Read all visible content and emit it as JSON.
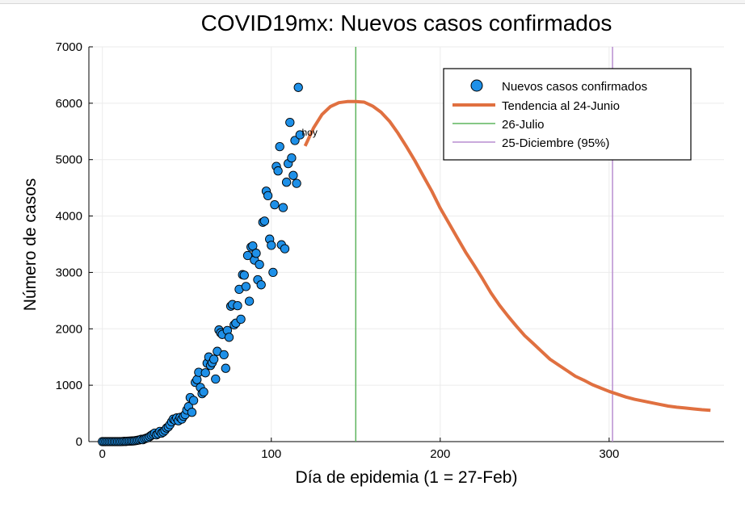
{
  "chart_data": {
    "type": "scatter",
    "title": "COVID19mx: Nuevos casos confirmados",
    "xlabel": "Día de epidemia (1 = 27-Feb)",
    "ylabel": "Número de casos",
    "xlim": [
      -8,
      368
    ],
    "ylim": [
      0,
      7000
    ],
    "xticks": [
      0,
      100,
      200,
      300
    ],
    "yticks": [
      0,
      1000,
      2000,
      3000,
      4000,
      5000,
      6000,
      7000
    ],
    "grid": true,
    "legend_position": "top-right",
    "annotation": {
      "text": "hoy",
      "x": 119,
      "y": 5480
    },
    "colors": {
      "points": "#1e90e8",
      "trend": "#e07040",
      "vline_julio": "#5fb55f",
      "vline_diciembre": "#b98ed0"
    },
    "series": [
      {
        "name": "Nuevos casos confirmados",
        "kind": "scatter",
        "points": [
          [
            0,
            0
          ],
          [
            1,
            0
          ],
          [
            2,
            0
          ],
          [
            3,
            0
          ],
          [
            4,
            0
          ],
          [
            5,
            0
          ],
          [
            6,
            0
          ],
          [
            7,
            0
          ],
          [
            8,
            0
          ],
          [
            9,
            0
          ],
          [
            10,
            0
          ],
          [
            11,
            0
          ],
          [
            12,
            2
          ],
          [
            13,
            5
          ],
          [
            14,
            3
          ],
          [
            15,
            7
          ],
          [
            16,
            8
          ],
          [
            17,
            10
          ],
          [
            18,
            12
          ],
          [
            19,
            15
          ],
          [
            20,
            20
          ],
          [
            21,
            25
          ],
          [
            22,
            30
          ],
          [
            23,
            40
          ],
          [
            24,
            35
          ],
          [
            25,
            50
          ],
          [
            26,
            60
          ],
          [
            27,
            70
          ],
          [
            28,
            90
          ],
          [
            29,
            110
          ],
          [
            30,
            130
          ],
          [
            31,
            150
          ],
          [
            32,
            120
          ],
          [
            33,
            140
          ],
          [
            34,
            180
          ],
          [
            35,
            150
          ],
          [
            36,
            170
          ],
          [
            37,
            200
          ],
          [
            38,
            240
          ],
          [
            39,
            260
          ],
          [
            40,
            300
          ],
          [
            41,
            350
          ],
          [
            42,
            400
          ],
          [
            43,
            380
          ],
          [
            44,
            420
          ],
          [
            45,
            370
          ],
          [
            46,
            430
          ],
          [
            47,
            400
          ],
          [
            48,
            450
          ],
          [
            49,
            480
          ],
          [
            50,
            560
          ],
          [
            51,
            620
          ],
          [
            52,
            780
          ],
          [
            53,
            520
          ],
          [
            54,
            730
          ],
          [
            55,
            1050
          ],
          [
            56,
            1100
          ],
          [
            57,
            1230
          ],
          [
            58,
            960
          ],
          [
            59,
            850
          ],
          [
            60,
            880
          ],
          [
            61,
            1220
          ],
          [
            62,
            1390
          ],
          [
            63,
            1500
          ],
          [
            64,
            1350
          ],
          [
            65,
            1400
          ],
          [
            66,
            1460
          ],
          [
            67,
            1110
          ],
          [
            68,
            1600
          ],
          [
            69,
            1980
          ],
          [
            70,
            1930
          ],
          [
            71,
            1900
          ],
          [
            72,
            1540
          ],
          [
            73,
            1300
          ],
          [
            74,
            1970
          ],
          [
            75,
            1850
          ],
          [
            76,
            2400
          ],
          [
            77,
            2430
          ],
          [
            78,
            2070
          ],
          [
            79,
            2100
          ],
          [
            80,
            2410
          ],
          [
            81,
            2700
          ],
          [
            82,
            2170
          ],
          [
            83,
            2960
          ],
          [
            84,
            2950
          ],
          [
            85,
            2750
          ],
          [
            86,
            3300
          ],
          [
            87,
            2490
          ],
          [
            88,
            3450
          ],
          [
            89,
            3470
          ],
          [
            90,
            3220
          ],
          [
            91,
            3340
          ],
          [
            92,
            2870
          ],
          [
            93,
            3140
          ],
          [
            94,
            2780
          ],
          [
            95,
            3890
          ],
          [
            96,
            3910
          ],
          [
            97,
            4440
          ],
          [
            98,
            4360
          ],
          [
            99,
            3590
          ],
          [
            100,
            3480
          ],
          [
            101,
            3000
          ],
          [
            102,
            4200
          ],
          [
            103,
            4880
          ],
          [
            104,
            4800
          ],
          [
            105,
            5230
          ],
          [
            106,
            3490
          ],
          [
            107,
            4150
          ],
          [
            108,
            3420
          ],
          [
            109,
            4600
          ],
          [
            110,
            4930
          ],
          [
            111,
            5660
          ],
          [
            112,
            5030
          ],
          [
            113,
            4720
          ],
          [
            114,
            5340
          ],
          [
            115,
            4580
          ],
          [
            116,
            6280
          ],
          [
            117,
            5440
          ]
        ]
      },
      {
        "name": "Tendencia al 24-Junio",
        "kind": "line",
        "peak_day": 152,
        "peak_value": 6030,
        "x_range": [
          120,
          360
        ],
        "points": [
          [
            120,
            5240
          ],
          [
            125,
            5560
          ],
          [
            130,
            5800
          ],
          [
            135,
            5940
          ],
          [
            140,
            6010
          ],
          [
            145,
            6030
          ],
          [
            150,
            6030
          ],
          [
            155,
            6020
          ],
          [
            160,
            5950
          ],
          [
            165,
            5840
          ],
          [
            170,
            5680
          ],
          [
            175,
            5470
          ],
          [
            180,
            5230
          ],
          [
            185,
            4980
          ],
          [
            190,
            4710
          ],
          [
            195,
            4440
          ],
          [
            200,
            4140
          ],
          [
            205,
            3880
          ],
          [
            210,
            3620
          ],
          [
            215,
            3360
          ],
          [
            220,
            3130
          ],
          [
            225,
            2890
          ],
          [
            230,
            2640
          ],
          [
            235,
            2420
          ],
          [
            240,
            2230
          ],
          [
            245,
            2050
          ],
          [
            250,
            1880
          ],
          [
            255,
            1740
          ],
          [
            260,
            1600
          ],
          [
            265,
            1460
          ],
          [
            270,
            1360
          ],
          [
            275,
            1260
          ],
          [
            280,
            1160
          ],
          [
            285,
            1090
          ],
          [
            290,
            1010
          ],
          [
            295,
            950
          ],
          [
            300,
            890
          ],
          [
            305,
            840
          ],
          [
            310,
            790
          ],
          [
            315,
            750
          ],
          [
            320,
            720
          ],
          [
            325,
            690
          ],
          [
            330,
            660
          ],
          [
            335,
            630
          ],
          [
            340,
            610
          ],
          [
            345,
            595
          ],
          [
            350,
            580
          ],
          [
            355,
            565
          ],
          [
            360,
            555
          ]
        ]
      },
      {
        "name": "26-Julio",
        "kind": "vline",
        "x": 150
      },
      {
        "name": "25-Diciembre (95%)",
        "kind": "vline",
        "x": 302
      }
    ]
  }
}
